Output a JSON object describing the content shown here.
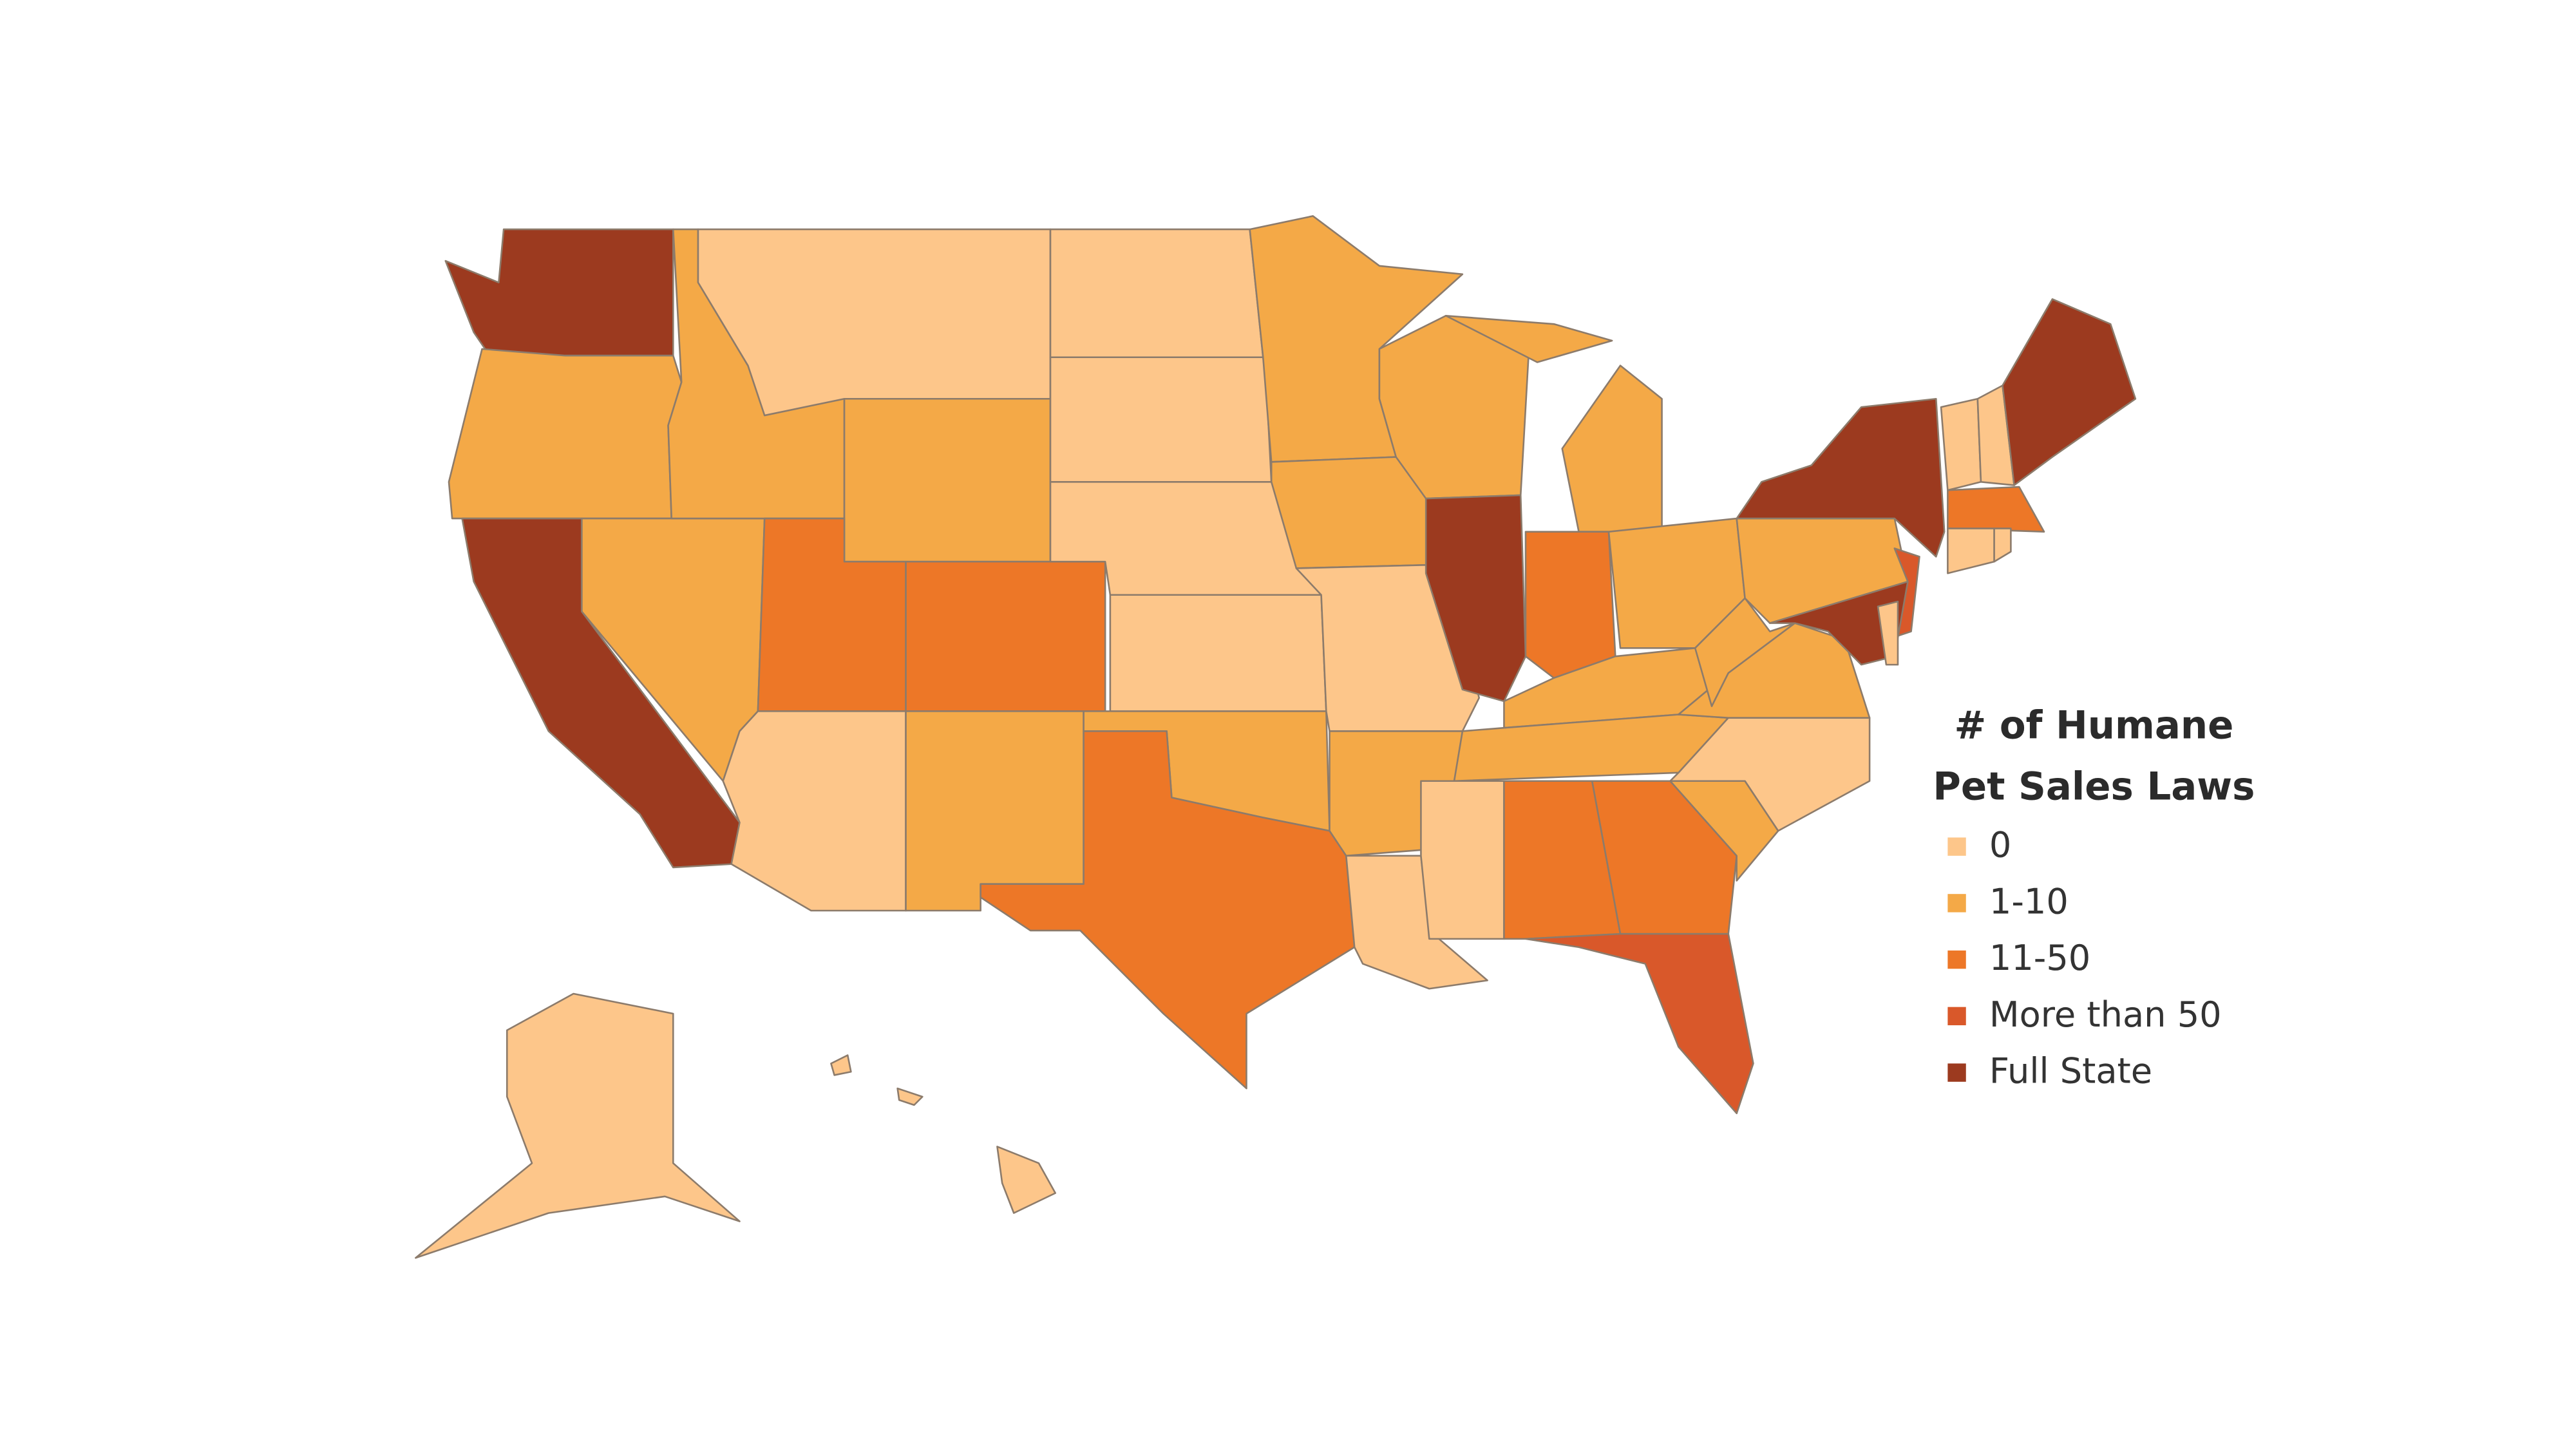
{
  "legend": {
    "title": [
      "# of Humane",
      "Pet Sales Laws"
    ],
    "items": [
      {
        "label": "0",
        "color": "#fdc68a"
      },
      {
        "label": "1-10",
        "color": "#f4a947"
      },
      {
        "label": "11-50",
        "color": "#ed7727"
      },
      {
        "label": "More than 50",
        "color": "#d9582a"
      },
      {
        "label": "Full State",
        "color": "#9c3a1f"
      }
    ]
  },
  "regions": [
    4,
    1,
    4,
    1,
    1,
    0,
    1,
    2,
    2,
    0,
    1,
    0,
    0,
    0,
    0,
    1,
    2,
    1,
    1,
    0,
    1,
    0,
    1,
    4,
    1,
    2,
    1,
    1,
    1,
    0,
    2,
    2,
    3,
    1,
    0,
    1,
    1,
    1,
    4,
    3,
    4,
    0,
    0,
    0,
    4,
    2,
    0,
    0,
    0,
    0
  ]
}
